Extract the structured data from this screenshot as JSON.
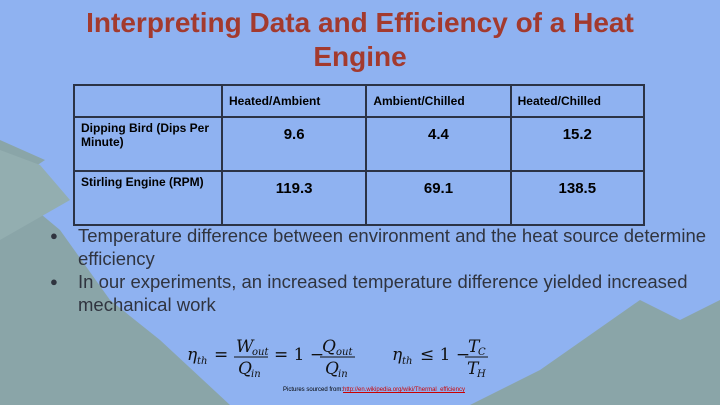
{
  "header": {
    "title": "Interpreting Data and Efficiency of a Heat Engine"
  },
  "table": {
    "columns": [
      "Heated/Ambient",
      "Ambient/Chilled",
      "Heated/Chilled"
    ],
    "rows": [
      {
        "label": "Dipping Bird (Dips Per Minute)",
        "values": [
          9.6,
          4.4,
          15.2
        ]
      },
      {
        "label": "Stirling Engine (RPM)",
        "values": [
          119.3,
          69.1,
          138.5
        ]
      }
    ]
  },
  "bullets": [
    "Temperature difference between environment and the heat source determine efficiency",
    "In our experiments, an increased temperature difference yielded increased mechanical work"
  ],
  "formulas": [
    {
      "eta": "η",
      "eta_sub": "th",
      "eq": "=",
      "num1": "W",
      "num1_sub": "out",
      "den1": "Q",
      "den1_sub": "in",
      "rel": "= 1 −",
      "num2": "Q",
      "num2_sub": "out",
      "den2": "Q",
      "den2_sub": "in"
    },
    {
      "eta": "η",
      "eta_sub": "th",
      "rel": "≤ 1 −",
      "num": "T",
      "num_sub": "C",
      "den": "T",
      "den_sub": "H"
    }
  ],
  "footer": {
    "credit": "Pictures sourced from:",
    "url": "http://en.wikipedia.org/wiki/Thermal_efficiency"
  }
}
